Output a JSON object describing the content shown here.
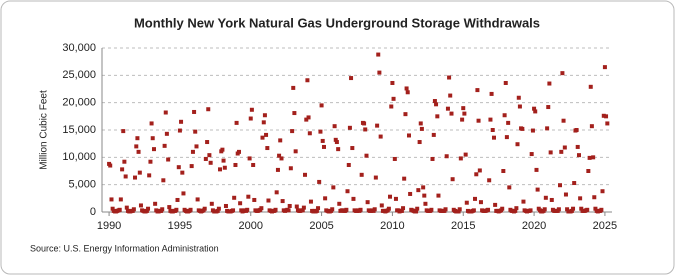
{
  "chart_data": {
    "type": "scatter",
    "title": "Monthly New York Natural  Gas Underground Storage Withdrawals",
    "y_label": "Million Cubic Feet",
    "source": "Source: U.S. Energy Information Administration",
    "color": "#a3201c",
    "grid": true,
    "xlim": [
      1989.5,
      2025.5
    ],
    "xticks": [
      1990,
      1995,
      2000,
      2005,
      2010,
      2015,
      2020,
      2025
    ],
    "ylim": [
      0,
      30000
    ],
    "yticks": [
      0,
      {
        "value": 5000,
        "label": "5,000"
      },
      {
        "value": 10000,
        "label": "10,000"
      },
      {
        "value": 15000,
        "label": "15,000"
      },
      {
        "value": 20000,
        "label": "20,000"
      },
      {
        "value": 25000,
        "label": "25,000"
      },
      {
        "value": 30000,
        "label": "30,000"
      }
    ],
    "x": [
      1990,
      1990.08,
      1990.17,
      1990.25,
      1990.33,
      1990.42,
      1990.5,
      1990.58,
      1990.67,
      1990.75,
      1990.83,
      1990.92,
      1991,
      1991.08,
      1991.17,
      1991.25,
      1991.33,
      1991.42,
      1991.5,
      1991.58,
      1991.67,
      1991.75,
      1991.83,
      1991.92,
      1992,
      1992.08,
      1992.17,
      1992.25,
      1992.33,
      1992.42,
      1992.5,
      1992.58,
      1992.67,
      1992.75,
      1992.83,
      1992.92,
      1993,
      1993.08,
      1993.17,
      1993.25,
      1993.33,
      1993.42,
      1993.5,
      1993.58,
      1993.67,
      1993.75,
      1993.83,
      1993.92,
      1994,
      1994.08,
      1994.17,
      1994.25,
      1994.33,
      1994.42,
      1994.5,
      1994.58,
      1994.67,
      1994.75,
      1994.83,
      1994.92,
      1995,
      1995.08,
      1995.17,
      1995.25,
      1995.33,
      1995.42,
      1995.5,
      1995.58,
      1995.67,
      1995.75,
      1995.83,
      1995.92,
      1996,
      1996.08,
      1996.17,
      1996.25,
      1996.33,
      1996.42,
      1996.5,
      1996.58,
      1996.67,
      1996.75,
      1996.83,
      1996.92,
      1997,
      1997.08,
      1997.17,
      1997.25,
      1997.33,
      1997.42,
      1997.5,
      1997.58,
      1997.67,
      1997.75,
      1997.83,
      1997.92,
      1998,
      1998.08,
      1998.17,
      1998.25,
      1998.33,
      1998.42,
      1998.5,
      1998.58,
      1998.67,
      1998.75,
      1998.83,
      1998.92,
      1999,
      1999.08,
      1999.17,
      1999.25,
      1999.33,
      1999.42,
      1999.5,
      1999.58,
      1999.67,
      1999.75,
      1999.83,
      1999.92,
      2000,
      2000.08,
      2000.17,
      2000.25,
      2000.33,
      2000.42,
      2000.5,
      2000.58,
      2000.67,
      2000.75,
      2000.83,
      2000.92,
      2001,
      2001.08,
      2001.17,
      2001.25,
      2001.33,
      2001.42,
      2001.5,
      2001.58,
      2001.67,
      2001.75,
      2001.83,
      2001.92,
      2002,
      2002.08,
      2002.17,
      2002.25,
      2002.33,
      2002.42,
      2002.5,
      2002.58,
      2002.67,
      2002.75,
      2002.83,
      2002.92,
      2003,
      2003.08,
      2003.17,
      2003.25,
      2003.33,
      2003.42,
      2003.5,
      2003.58,
      2003.67,
      2003.75,
      2003.83,
      2003.92,
      2004,
      2004.08,
      2004.17,
      2004.25,
      2004.33,
      2004.42,
      2004.5,
      2004.58,
      2004.67,
      2004.75,
      2004.83,
      2004.92,
      2005,
      2005.08,
      2005.17,
      2005.25,
      2005.33,
      2005.42,
      2005.5,
      2005.58,
      2005.67,
      2005.75,
      2005.83,
      2005.92,
      2006,
      2006.08,
      2006.17,
      2006.25,
      2006.33,
      2006.42,
      2006.5,
      2006.58,
      2006.67,
      2006.75,
      2006.83,
      2006.92,
      2007,
      2007.08,
      2007.17,
      2007.25,
      2007.33,
      2007.42,
      2007.5,
      2007.58,
      2007.67,
      2007.75,
      2007.83,
      2007.92,
      2008,
      2008.08,
      2008.17,
      2008.25,
      2008.33,
      2008.42,
      2008.5,
      2008.58,
      2008.67,
      2008.75,
      2008.83,
      2008.92,
      2009,
      2009.08,
      2009.17,
      2009.25,
      2009.33,
      2009.42,
      2009.5,
      2009.58,
      2009.67,
      2009.75,
      2009.83,
      2009.92,
      2010,
      2010.08,
      2010.17,
      2010.25,
      2010.33,
      2010.42,
      2010.5,
      2010.58,
      2010.67,
      2010.75,
      2010.83,
      2010.92,
      2011,
      2011.08,
      2011.17,
      2011.25,
      2011.33,
      2011.42,
      2011.5,
      2011.58,
      2011.67,
      2011.75,
      2011.83,
      2011.92,
      2012,
      2012.08,
      2012.17,
      2012.25,
      2012.33,
      2012.42,
      2012.5,
      2012.58,
      2012.67,
      2012.75,
      2012.83,
      2012.92,
      2013,
      2013.08,
      2013.17,
      2013.25,
      2013.33,
      2013.42,
      2013.5,
      2013.58,
      2013.67,
      2013.75,
      2013.83,
      2013.92,
      2014,
      2014.08,
      2014.17,
      2014.25,
      2014.33,
      2014.42,
      2014.5,
      2014.58,
      2014.67,
      2014.75,
      2014.83,
      2014.92,
      2015,
      2015.08,
      2015.17,
      2015.25,
      2015.33,
      2015.42,
      2015.5,
      2015.58,
      2015.67,
      2015.75,
      2015.83,
      2015.92,
      2016,
      2016.08,
      2016.17,
      2016.25,
      2016.33,
      2016.42,
      2016.5,
      2016.58,
      2016.67,
      2016.75,
      2016.83,
      2016.92,
      2017,
      2017.08,
      2017.17,
      2017.25,
      2017.33,
      2017.42,
      2017.5,
      2017.58,
      2017.67,
      2017.75,
      2017.83,
      2017.92,
      2018,
      2018.08,
      2018.17,
      2018.25,
      2018.33,
      2018.42,
      2018.5,
      2018.58,
      2018.67,
      2018.75,
      2018.83,
      2018.92,
      2019,
      2019.08,
      2019.17,
      2019.25,
      2019.33,
      2019.42,
      2019.5,
      2019.58,
      2019.67,
      2019.75,
      2019.83,
      2019.92,
      2020,
      2020.08,
      2020.17,
      2020.25,
      2020.33,
      2020.42,
      2020.5,
      2020.58,
      2020.67,
      2020.75,
      2020.83,
      2020.92,
      2021,
      2021.08,
      2021.17,
      2021.25,
      2021.33,
      2021.42,
      2021.5,
      2021.58,
      2021.67,
      2021.75,
      2021.83,
      2021.92,
      2022,
      2022.08,
      2022.17,
      2022.25,
      2022.33,
      2022.42,
      2022.5,
      2022.58,
      2022.67,
      2022.75,
      2022.83,
      2022.92,
      2023,
      2023.08,
      2023.17,
      2023.25,
      2023.33,
      2023.42,
      2023.5,
      2023.58,
      2023.67,
      2023.75,
      2023.83,
      2023.92,
      2024,
      2024.08,
      2024.17,
      2024.25,
      2024.33,
      2024.42,
      2024.5,
      2024.58,
      2024.67,
      2024.75,
      2024.83,
      2024.92,
      2025,
      2025.08,
      2025.17
    ],
    "values": [
      8800,
      8500,
      2300,
      600,
      200,
      100,
      100,
      200,
      300,
      400,
      2300,
      7800,
      14800,
      9200,
      6500,
      800,
      200,
      100,
      100,
      200,
      200,
      500,
      6300,
      12000,
      13500,
      11000,
      7200,
      1200,
      300,
      200,
      100,
      100,
      200,
      600,
      6700,
      9200,
      16200,
      13500,
      11500,
      1500,
      300,
      100,
      100,
      200,
      200,
      500,
      5800,
      12100,
      18200,
      14300,
      9600,
      900,
      200,
      100,
      100,
      200,
      200,
      400,
      2200,
      8200,
      14900,
      16500,
      7200,
      3400,
      400,
      200,
      100,
      100,
      200,
      400,
      8400,
      11000,
      18300,
      14700,
      12000,
      2300,
      300,
      200,
      100,
      200,
      300,
      600,
      9700,
      12800,
      18800,
      10400,
      9000,
      1500,
      300,
      100,
      100,
      100,
      200,
      600,
      7800,
      11100,
      11400,
      9400,
      8100,
      1100,
      200,
      100,
      100,
      100,
      200,
      300,
      2600,
      8600,
      16300,
      10700,
      11000,
      1600,
      300,
      100,
      200,
      300,
      200,
      400,
      2800,
      9800,
      17100,
      18700,
      8600,
      2200,
      300,
      200,
      200,
      300,
      400,
      700,
      13600,
      16400,
      17700,
      14100,
      11700,
      2100,
      300,
      200,
      100,
      200,
      200,
      400,
      3600,
      7700,
      10300,
      13100,
      9800,
      2000,
      300,
      200,
      300,
      400,
      300,
      1100,
      8000,
      14800,
      22700,
      18100,
      11100,
      1000,
      300,
      200,
      200,
      300,
      300,
      800,
      6800,
      16900,
      24100,
      17300,
      14400,
      1900,
      200,
      100,
      200,
      100,
      200,
      700,
      5500,
      14700,
      19500,
      13000,
      11900,
      2500,
      300,
      200,
      100,
      100,
      200,
      500,
      4500,
      15700,
      13200,
      12800,
      11500,
      1500,
      200,
      300,
      300,
      200,
      200,
      400,
      3800,
      8600,
      15400,
      24500,
      11700,
      2400,
      300,
      200,
      200,
      300,
      200,
      400,
      6800,
      16300,
      16200,
      15100,
      10300,
      1800,
      300,
      200,
      200,
      300,
      200,
      500,
      6300,
      15800,
      28800,
      25500,
      13800,
      1200,
      200,
      200,
      100,
      200,
      300,
      600,
      2800,
      19300,
      23600,
      20700,
      9700,
      2400,
      300,
      300,
      100,
      200,
      200,
      700,
      6100,
      17900,
      22600,
      21900,
      14000,
      3300,
      400,
      300,
      200,
      100,
      100,
      600,
      4000,
      12800,
      16200,
      15200,
      4500,
      3000,
      1500,
      300,
      200,
      200,
      200,
      400,
      9700,
      14100,
      20300,
      19700,
      17500,
      3000,
      300,
      200,
      200,
      200,
      200,
      500,
      10200,
      18900,
      24600,
      21300,
      18000,
      6000,
      400,
      200,
      100,
      100,
      100,
      500,
      9800,
      16900,
      19000,
      18000,
      10500,
      1700,
      200,
      100,
      100,
      100,
      200,
      300,
      2400,
      6900,
      22300,
      16700,
      7600,
      1800,
      300,
      200,
      200,
      200,
      300,
      400,
      5800,
      16900,
      21600,
      15000,
      13600,
      1300,
      200,
      200,
      100,
      200,
      300,
      600,
      7500,
      17700,
      23600,
      13700,
      16300,
      4500,
      400,
      200,
      200,
      100,
      200,
      700,
      12400,
      20900,
      19300,
      15300,
      15200,
      1900,
      300,
      200,
      100,
      200,
      200,
      300,
      10600,
      14900,
      18900,
      18400,
      7700,
      4100,
      600,
      300,
      100,
      100,
      200,
      500,
      2600,
      15300,
      19200,
      23500,
      10900,
      2200,
      400,
      200,
      200,
      200,
      200,
      500,
      4900,
      11000,
      25400,
      16700,
      11800,
      3200,
      500,
      100,
      100,
      100,
      200,
      600,
      5300,
      14900,
      15000,
      11900,
      10400,
      2500,
      600,
      200,
      200,
      200,
      300,
      400,
      7500,
      9900,
      22900,
      15700,
      10000,
      2700,
      600,
      200,
      100,
      200,
      200,
      400,
      3800,
      17600,
      26500,
      17500,
      16200
    ]
  }
}
